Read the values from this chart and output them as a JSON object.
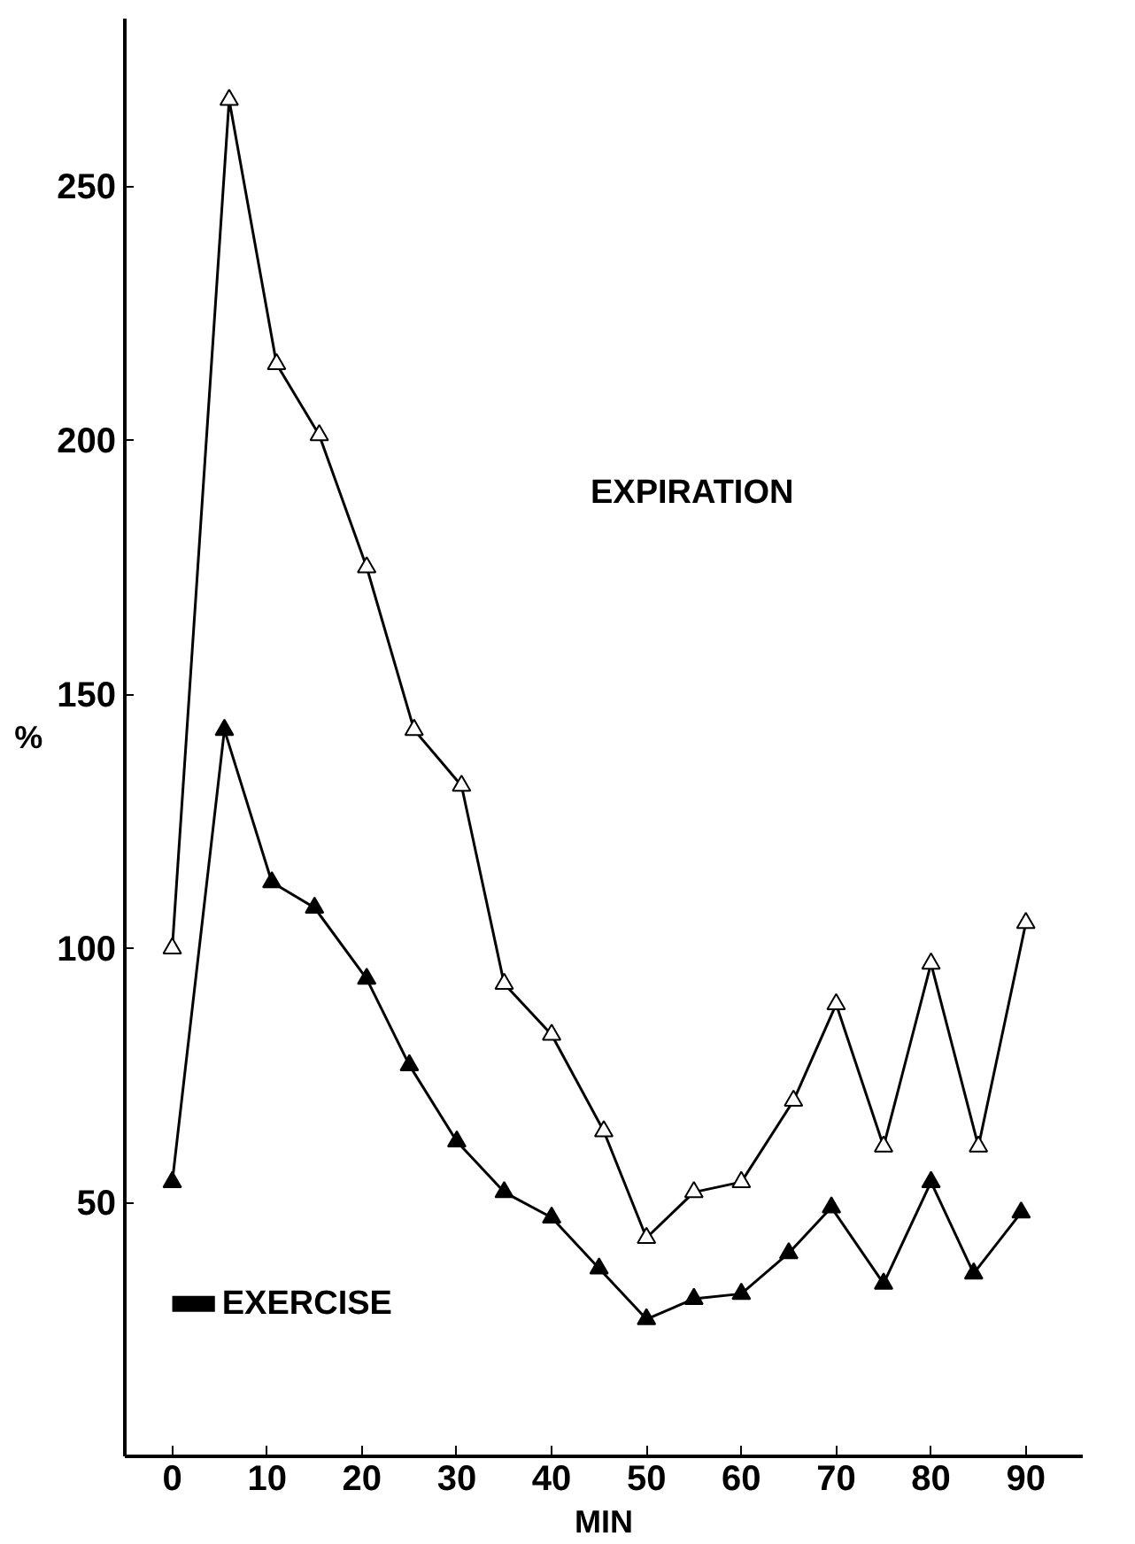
{
  "chart_data": {
    "type": "line",
    "xlabel": "MIN",
    "ylabel": "%",
    "marker": "triangle",
    "grid": false,
    "xlim": [
      -5,
      96
    ],
    "ylim": [
      0,
      283
    ],
    "xticks": [
      0,
      10,
      20,
      30,
      40,
      50,
      60,
      70,
      80,
      90
    ],
    "yticks": [
      50,
      100,
      150,
      200,
      250
    ],
    "series": [
      {
        "color": "#000000",
        "x": [
          0,
          6,
          11,
          15.5,
          20.5,
          25.5,
          30.5,
          35,
          40,
          45.5,
          50,
          55,
          60,
          65.5,
          70,
          75,
          80,
          85,
          90
        ],
        "values": [
          100,
          267,
          215,
          201,
          175,
          143,
          132,
          93,
          83,
          64,
          43,
          52,
          54,
          70,
          89,
          61,
          97,
          61,
          105
        ]
      },
      {
        "color": "#000000",
        "x": [
          0,
          5.5,
          10.5,
          15,
          20.5,
          25,
          30,
          35,
          40,
          45,
          50,
          55,
          60,
          65,
          69.5,
          75,
          80,
          84.5,
          89.5
        ],
        "values": [
          54,
          143,
          113,
          108,
          94,
          77,
          62,
          52,
          47,
          37,
          27,
          31,
          32,
          40,
          49,
          34,
          54,
          36,
          48
        ]
      },
      {
        "name": "EXERCISE",
        "color": "#000000",
        "marker": "none",
        "x": [
          0,
          4.5
        ],
        "values": [
          30,
          30
        ]
      }
    ],
    "annotations": [
      "EXPIRATION"
    ]
  }
}
